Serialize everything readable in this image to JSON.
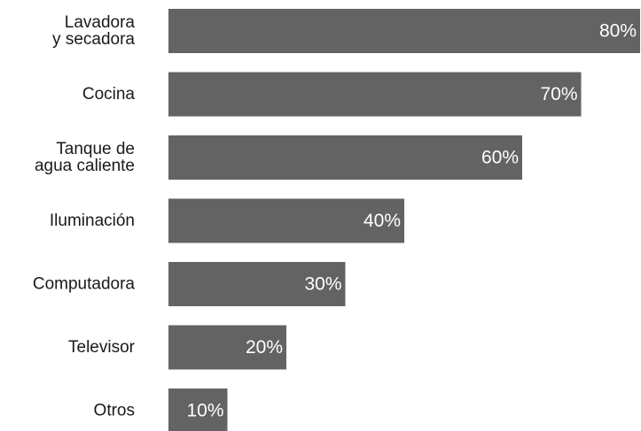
{
  "chart_data": {
    "type": "bar",
    "orientation": "horizontal",
    "categories": [
      [
        "Lavadora",
        "y secadora"
      ],
      [
        "Cocina"
      ],
      [
        "Tanque de",
        "agua caliente"
      ],
      [
        "Iluminación"
      ],
      [
        "Computadora"
      ],
      [
        "Televisor"
      ],
      [
        "Otros"
      ]
    ],
    "values": [
      80,
      70,
      60,
      40,
      30,
      20,
      10
    ],
    "value_labels": [
      "80%",
      "70%",
      "60%",
      "40%",
      "30%",
      "20%",
      "10%"
    ],
    "xlim": [
      0,
      80
    ],
    "bar_color": "#636363",
    "value_label_color": "#ffffff",
    "category_label_color": "#1a1a1a",
    "grid": false,
    "legend": "none",
    "title": "",
    "xlabel": "",
    "ylabel": ""
  }
}
